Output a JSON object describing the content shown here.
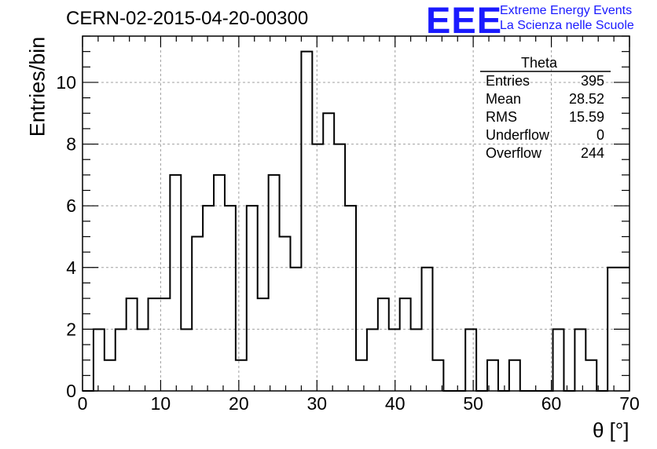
{
  "chart_data": {
    "type": "histogram",
    "title": "CERN-02-2015-04-20-00300",
    "xlabel": "θ [°]",
    "ylabel": "Entries/bin",
    "xlim": [
      0,
      70
    ],
    "ylim": [
      0,
      11.5
    ],
    "xticks": [
      "0",
      "10",
      "20",
      "30",
      "40",
      "50",
      "60",
      "70"
    ],
    "yticks": [
      "0",
      "2",
      "4",
      "6",
      "8",
      "10"
    ],
    "grid": true,
    "bin_width": 1.4,
    "bin_start": 0,
    "values": [
      0,
      2,
      1,
      2,
      3,
      2,
      3,
      3,
      7,
      2,
      5,
      6,
      7,
      6,
      1,
      6,
      3,
      7,
      5,
      4,
      11,
      8,
      9,
      8,
      6,
      1,
      2,
      3,
      2,
      3,
      2,
      4,
      1,
      0,
      0,
      2,
      0,
      1,
      0,
      1,
      0,
      0,
      0,
      2,
      0,
      2,
      1,
      0,
      4,
      4
    ]
  },
  "stats_box": {
    "name": "Theta",
    "rows": [
      {
        "label": "Entries",
        "value": "395"
      },
      {
        "label": "Mean",
        "value": "28.52"
      },
      {
        "label": "RMS",
        "value": "15.59"
      },
      {
        "label": "Underflow",
        "value": "0"
      },
      {
        "label": "Overflow",
        "value": "244"
      }
    ]
  },
  "branding": {
    "logo": "EEE",
    "line1": "Extreme Energy Events",
    "line2": "La Scienza nelle Scuole"
  }
}
